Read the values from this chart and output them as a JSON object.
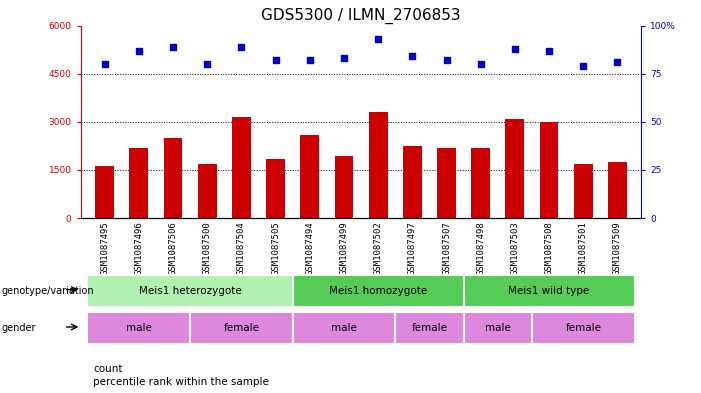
{
  "title": "GDS5300 / ILMN_2706853",
  "samples": [
    "GSM1087495",
    "GSM1087496",
    "GSM1087506",
    "GSM1087500",
    "GSM1087504",
    "GSM1087505",
    "GSM1087494",
    "GSM1087499",
    "GSM1087502",
    "GSM1087497",
    "GSM1087507",
    "GSM1087498",
    "GSM1087503",
    "GSM1087508",
    "GSM1087501",
    "GSM1087509"
  ],
  "counts": [
    1620,
    2200,
    2500,
    1700,
    3150,
    1850,
    2600,
    1950,
    3300,
    2250,
    2200,
    2200,
    3100,
    3000,
    1700,
    1750
  ],
  "percentiles": [
    80,
    87,
    89,
    80,
    89,
    82,
    82,
    83,
    93,
    84,
    82,
    80,
    88,
    87,
    79,
    81
  ],
  "bar_color": "#cc0000",
  "dot_color": "#0000cc",
  "ylim_left": [
    0,
    6000
  ],
  "ylim_right": [
    0,
    100
  ],
  "yticks_left": [
    0,
    1500,
    3000,
    4500,
    6000
  ],
  "yticks_right": [
    0,
    25,
    50,
    75,
    100
  ],
  "ytick_labels_left": [
    "0",
    "1500",
    "3000",
    "4500",
    "6000"
  ],
  "ytick_labels_right": [
    "0",
    "25",
    "50",
    "75",
    "100%"
  ],
  "geno_groups": [
    {
      "label": "Meis1 heterozygote",
      "start": 0,
      "end": 5,
      "color": "#b0f0b0"
    },
    {
      "label": "Meis1 homozygote",
      "start": 6,
      "end": 10,
      "color": "#55cc55"
    },
    {
      "label": "Meis1 wild type",
      "start": 11,
      "end": 15,
      "color": "#55cc55"
    }
  ],
  "gender_groups": [
    {
      "label": "male",
      "start": 0,
      "end": 2,
      "color": "#dd88dd"
    },
    {
      "label": "female",
      "start": 3,
      "end": 5,
      "color": "#dd88dd"
    },
    {
      "label": "male",
      "start": 6,
      "end": 8,
      "color": "#dd88dd"
    },
    {
      "label": "female",
      "start": 9,
      "end": 10,
      "color": "#dd88dd"
    },
    {
      "label": "male",
      "start": 11,
      "end": 12,
      "color": "#dd88dd"
    },
    {
      "label": "female",
      "start": 13,
      "end": 15,
      "color": "#dd88dd"
    }
  ],
  "genotype_variation_label": "genotype/variation",
  "gender_label": "gender",
  "legend_count_label": "count",
  "legend_percentile_label": "percentile rank within the sample",
  "bg_color": "#ffffff",
  "title_fontsize": 11,
  "tick_fontsize": 6.5,
  "annot_fontsize": 7.5
}
